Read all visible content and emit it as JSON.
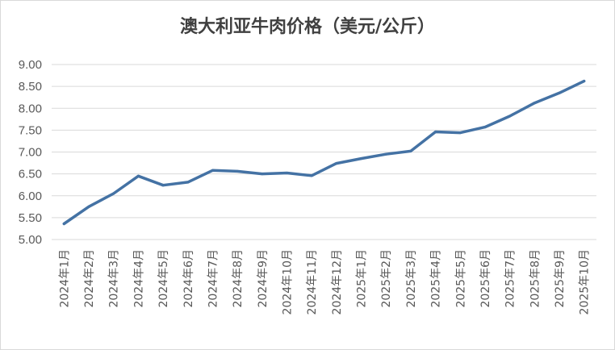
{
  "chart_data": {
    "type": "line",
    "title": "澳大利亚牛肉价格（美元/公斤）",
    "xlabel": "",
    "ylabel": "",
    "categories": [
      "2024年1月",
      "2024年2月",
      "2024年3月",
      "2024年4月",
      "2024年5月",
      "2024年6月",
      "2024年7月",
      "2024年8月",
      "2024年9月",
      "2024年10月",
      "2024年11月",
      "2024年12月",
      "2025年1月",
      "2025年2月",
      "2025年3月",
      "2025年4月",
      "2025年5月",
      "2025年6月",
      "2025年7月",
      "2025年8月",
      "2025年9月",
      "2025年10月"
    ],
    "values": [
      5.36,
      5.75,
      6.05,
      6.45,
      6.24,
      6.31,
      6.58,
      6.56,
      6.5,
      6.52,
      6.46,
      6.74,
      6.85,
      6.95,
      7.02,
      7.46,
      7.44,
      7.57,
      7.82,
      8.12,
      8.35,
      8.62
    ],
    "ylim": [
      5.0,
      9.0
    ],
    "yticks": [
      "5.00",
      "5.50",
      "6.00",
      "6.50",
      "7.00",
      "7.50",
      "8.00",
      "8.50",
      "9.00"
    ],
    "grid": true,
    "line_color": "#4472a4"
  }
}
